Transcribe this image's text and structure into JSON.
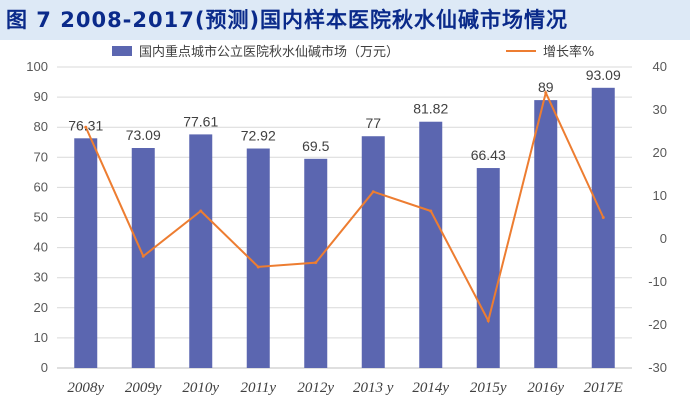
{
  "title": "图 7    2008-2017(预测)国内样本医院秋水仙碱市场情况",
  "colors": {
    "bar": "#5b66b0",
    "line": "#ed7d31",
    "title_bg": "#dde9f6",
    "title_text": "#0a2a8a"
  },
  "chart_data": {
    "type": "bar",
    "categories": [
      "2008y",
      "2009y",
      "2010y",
      "2011y",
      "2012y",
      "2013 y",
      "2014y",
      "2015y",
      "2016y",
      "2017E"
    ],
    "series": [
      {
        "name": "国内重点城市公立医院秋水仙碱市场（万元）",
        "type": "bar",
        "axis": "left",
        "values": [
          76.31,
          73.09,
          77.61,
          72.92,
          69.5,
          77,
          81.82,
          66.43,
          89,
          93.09
        ],
        "labels": [
          "76.31",
          "73.09",
          "77.61",
          "72.92",
          "69.5",
          "77",
          "81.82",
          "66.43",
          "89",
          "93.09"
        ]
      },
      {
        "name": "增长率%",
        "type": "line",
        "axis": "right",
        "values": [
          26,
          -4,
          6.5,
          -6.5,
          -5.5,
          11,
          6.5,
          -19,
          34,
          5
        ]
      }
    ],
    "y_left": {
      "min": 0,
      "max": 100,
      "step": 10
    },
    "y_right": {
      "min": -30,
      "max": 40,
      "step": 10
    },
    "grid": true,
    "legend": "top"
  }
}
